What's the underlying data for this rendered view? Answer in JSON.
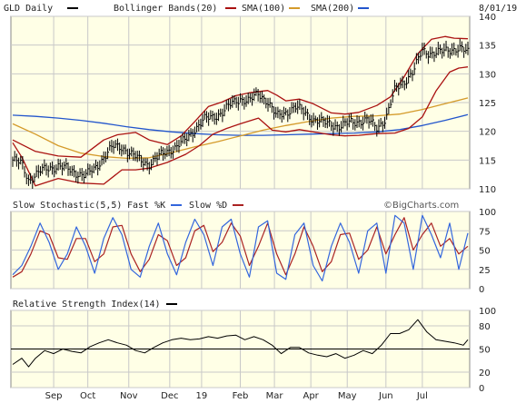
{
  "chart_data": {
    "type": "line",
    "header": {
      "symbol_label": "GLD Daily",
      "bb_label": "Bollinger Bands(20)",
      "sma100_label": "SMA(100)",
      "sma200_label": "SMA(200)",
      "date": "8/01/19"
    },
    "colors": {
      "panel_bg": "#ffffe6",
      "grid": "#c8c8c8",
      "price": "#000000",
      "bollinger": "#aa1111",
      "sma100": "#d49a2a",
      "sma200": "#2255cc",
      "fast_k": "#3366dd",
      "slow_d": "#aa2222",
      "rsi": "#000000"
    },
    "x_labels": [
      "Sep",
      "Oct",
      "Nov",
      "Dec",
      "19",
      "Feb",
      "Mar",
      "Apr",
      "May",
      "Jun",
      "Jul"
    ],
    "x_label_t": [
      0.09,
      0.165,
      0.255,
      0.345,
      0.415,
      0.5,
      0.575,
      0.655,
      0.735,
      0.82,
      0.9
    ],
    "price_panel": {
      "ylim": [
        110,
        140
      ],
      "yticks": [
        110,
        115,
        120,
        125,
        130,
        135,
        140
      ],
      "price_pts": [
        [
          0,
          115
        ],
        [
          0.02,
          114.3
        ],
        [
          0.035,
          111.5
        ],
        [
          0.06,
          113
        ],
        [
          0.08,
          113.6
        ],
        [
          0.1,
          114
        ],
        [
          0.12,
          113.4
        ],
        [
          0.14,
          112.8
        ],
        [
          0.16,
          112.3
        ],
        [
          0.18,
          113.5
        ],
        [
          0.2,
          115.5
        ],
        [
          0.22,
          117.3
        ],
        [
          0.24,
          117.3
        ],
        [
          0.26,
          116
        ],
        [
          0.28,
          115
        ],
        [
          0.3,
          114.3
        ],
        [
          0.32,
          115.5
        ],
        [
          0.34,
          116.6
        ],
        [
          0.36,
          117.3
        ],
        [
          0.38,
          118.5
        ],
        [
          0.4,
          120.4
        ],
        [
          0.42,
          122
        ],
        [
          0.44,
          122.5
        ],
        [
          0.46,
          123.3
        ],
        [
          0.48,
          124.7
        ],
        [
          0.5,
          125.7
        ],
        [
          0.52,
          125.3
        ],
        [
          0.54,
          126.5
        ],
        [
          0.56,
          125.3
        ],
        [
          0.58,
          122.5
        ],
        [
          0.6,
          123.3
        ],
        [
          0.62,
          124.3
        ],
        [
          0.64,
          123.3
        ],
        [
          0.66,
          122.2
        ],
        [
          0.68,
          121.5
        ],
        [
          0.7,
          121.3
        ],
        [
          0.72,
          120.8
        ],
        [
          0.74,
          121.5
        ],
        [
          0.76,
          121.8
        ],
        [
          0.78,
          121.9
        ],
        [
          0.8,
          120.6
        ],
        [
          0.82,
          122.3
        ],
        [
          0.84,
          127.2
        ],
        [
          0.86,
          128.7
        ],
        [
          0.88,
          130.3
        ],
        [
          0.9,
          134.1
        ],
        [
          0.92,
          133.6
        ],
        [
          0.94,
          133.7
        ],
        [
          0.96,
          134.3
        ],
        [
          0.98,
          134.4
        ],
        [
          1.0,
          133.7
        ]
      ],
      "bb_upper": [
        [
          0,
          118.5
        ],
        [
          0.05,
          116.5
        ],
        [
          0.1,
          115.7
        ],
        [
          0.15,
          115.5
        ],
        [
          0.2,
          118.5
        ],
        [
          0.23,
          119.4
        ],
        [
          0.27,
          119.8
        ],
        [
          0.3,
          118.5
        ],
        [
          0.34,
          117.7
        ],
        [
          0.37,
          119.2
        ],
        [
          0.4,
          121.7
        ],
        [
          0.43,
          124.3
        ],
        [
          0.46,
          125.1
        ],
        [
          0.49,
          126.2
        ],
        [
          0.52,
          126.7
        ],
        [
          0.56,
          127.1
        ],
        [
          0.58,
          126.3
        ],
        [
          0.6,
          125.3
        ],
        [
          0.63,
          125.6
        ],
        [
          0.66,
          124.8
        ],
        [
          0.7,
          123.2
        ],
        [
          0.73,
          123
        ],
        [
          0.76,
          123.3
        ],
        [
          0.8,
          124.5
        ],
        [
          0.83,
          126
        ],
        [
          0.86,
          129.5
        ],
        [
          0.89,
          133.5
        ],
        [
          0.92,
          136
        ],
        [
          0.95,
          136.5
        ],
        [
          0.97,
          136.2
        ],
        [
          1.0,
          136.1
        ]
      ],
      "bb_lower": [
        [
          0,
          118
        ],
        [
          0.02,
          115.5
        ],
        [
          0.05,
          110.5
        ],
        [
          0.1,
          111.8
        ],
        [
          0.15,
          111
        ],
        [
          0.2,
          110.8
        ],
        [
          0.24,
          113.3
        ],
        [
          0.27,
          113.3
        ],
        [
          0.3,
          113.6
        ],
        [
          0.34,
          114.6
        ],
        [
          0.38,
          116
        ],
        [
          0.41,
          117.5
        ],
        [
          0.44,
          119.5
        ],
        [
          0.47,
          120.5
        ],
        [
          0.5,
          121.3
        ],
        [
          0.54,
          122.3
        ],
        [
          0.57,
          120.2
        ],
        [
          0.6,
          119.9
        ],
        [
          0.63,
          120.3
        ],
        [
          0.66,
          119.9
        ],
        [
          0.7,
          119.4
        ],
        [
          0.73,
          119.2
        ],
        [
          0.76,
          119.3
        ],
        [
          0.8,
          119.6
        ],
        [
          0.84,
          119.7
        ],
        [
          0.87,
          120.5
        ],
        [
          0.9,
          122.5
        ],
        [
          0.93,
          127
        ],
        [
          0.96,
          130.3
        ],
        [
          0.98,
          131
        ],
        [
          1.0,
          131.2
        ]
      ],
      "sma100": [
        [
          0,
          121.3
        ],
        [
          0.05,
          119.5
        ],
        [
          0.1,
          117.5
        ],
        [
          0.15,
          116.2
        ],
        [
          0.2,
          115.6
        ],
        [
          0.25,
          115.3
        ],
        [
          0.3,
          115.4
        ],
        [
          0.35,
          116.3
        ],
        [
          0.4,
          117.3
        ],
        [
          0.45,
          118.2
        ],
        [
          0.5,
          119.2
        ],
        [
          0.55,
          120.2
        ],
        [
          0.6,
          121
        ],
        [
          0.65,
          121.7
        ],
        [
          0.7,
          122.3
        ],
        [
          0.75,
          122.6
        ],
        [
          0.8,
          122.7
        ],
        [
          0.85,
          123
        ],
        [
          0.9,
          123.8
        ],
        [
          0.95,
          124.8
        ],
        [
          1.0,
          125.8
        ]
      ],
      "sma200": [
        [
          0,
          122.8
        ],
        [
          0.05,
          122.6
        ],
        [
          0.1,
          122.3
        ],
        [
          0.15,
          121.9
        ],
        [
          0.2,
          121.4
        ],
        [
          0.25,
          120.8
        ],
        [
          0.3,
          120.3
        ],
        [
          0.35,
          119.9
        ],
        [
          0.4,
          119.6
        ],
        [
          0.45,
          119.4
        ],
        [
          0.5,
          119.3
        ],
        [
          0.55,
          119.3
        ],
        [
          0.6,
          119.4
        ],
        [
          0.65,
          119.5
        ],
        [
          0.7,
          119.6
        ],
        [
          0.75,
          119.7
        ],
        [
          0.8,
          119.9
        ],
        [
          0.85,
          120.3
        ],
        [
          0.9,
          121
        ],
        [
          0.95,
          121.9
        ],
        [
          1.0,
          122.9
        ]
      ]
    },
    "stoch_panel": {
      "header": {
        "title": "Slow Stochastic(5,5)",
        "fast_label": "Fast %K",
        "slow_label": "Slow %D",
        "watermark": "©BigCharts.com"
      },
      "ylim": [
        0,
        100
      ],
      "yticks": [
        0,
        25,
        50,
        75,
        100
      ],
      "fast_k": [
        [
          0,
          18
        ],
        [
          0.02,
          30
        ],
        [
          0.04,
          55
        ],
        [
          0.06,
          85
        ],
        [
          0.08,
          60
        ],
        [
          0.1,
          25
        ],
        [
          0.12,
          45
        ],
        [
          0.14,
          80
        ],
        [
          0.16,
          55
        ],
        [
          0.18,
          20
        ],
        [
          0.2,
          65
        ],
        [
          0.22,
          92
        ],
        [
          0.24,
          70
        ],
        [
          0.26,
          25
        ],
        [
          0.28,
          15
        ],
        [
          0.3,
          55
        ],
        [
          0.32,
          85
        ],
        [
          0.34,
          45
        ],
        [
          0.36,
          18
        ],
        [
          0.38,
          60
        ],
        [
          0.4,
          90
        ],
        [
          0.42,
          70
        ],
        [
          0.44,
          30
        ],
        [
          0.46,
          80
        ],
        [
          0.48,
          90
        ],
        [
          0.5,
          45
        ],
        [
          0.52,
          15
        ],
        [
          0.54,
          80
        ],
        [
          0.56,
          88
        ],
        [
          0.58,
          20
        ],
        [
          0.6,
          12
        ],
        [
          0.62,
          70
        ],
        [
          0.64,
          85
        ],
        [
          0.66,
          30
        ],
        [
          0.68,
          10
        ],
        [
          0.7,
          55
        ],
        [
          0.72,
          85
        ],
        [
          0.74,
          60
        ],
        [
          0.76,
          20
        ],
        [
          0.78,
          75
        ],
        [
          0.8,
          85
        ],
        [
          0.82,
          20
        ],
        [
          0.84,
          95
        ],
        [
          0.86,
          85
        ],
        [
          0.88,
          25
        ],
        [
          0.9,
          95
        ],
        [
          0.92,
          70
        ],
        [
          0.94,
          40
        ],
        [
          0.96,
          85
        ],
        [
          0.98,
          25
        ],
        [
          1.0,
          72
        ]
      ],
      "slow_d": [
        [
          0,
          15
        ],
        [
          0.02,
          22
        ],
        [
          0.04,
          45
        ],
        [
          0.06,
          75
        ],
        [
          0.08,
          70
        ],
        [
          0.1,
          40
        ],
        [
          0.12,
          38
        ],
        [
          0.14,
          65
        ],
        [
          0.16,
          65
        ],
        [
          0.18,
          35
        ],
        [
          0.2,
          45
        ],
        [
          0.22,
          80
        ],
        [
          0.24,
          82
        ],
        [
          0.26,
          45
        ],
        [
          0.28,
          22
        ],
        [
          0.3,
          38
        ],
        [
          0.32,
          70
        ],
        [
          0.34,
          62
        ],
        [
          0.36,
          30
        ],
        [
          0.38,
          40
        ],
        [
          0.4,
          75
        ],
        [
          0.42,
          82
        ],
        [
          0.44,
          48
        ],
        [
          0.46,
          60
        ],
        [
          0.48,
          85
        ],
        [
          0.5,
          68
        ],
        [
          0.52,
          30
        ],
        [
          0.54,
          55
        ],
        [
          0.56,
          85
        ],
        [
          0.58,
          45
        ],
        [
          0.6,
          18
        ],
        [
          0.62,
          45
        ],
        [
          0.64,
          80
        ],
        [
          0.66,
          55
        ],
        [
          0.68,
          22
        ],
        [
          0.7,
          35
        ],
        [
          0.72,
          70
        ],
        [
          0.74,
          72
        ],
        [
          0.76,
          38
        ],
        [
          0.78,
          50
        ],
        [
          0.8,
          80
        ],
        [
          0.82,
          45
        ],
        [
          0.84,
          70
        ],
        [
          0.86,
          92
        ],
        [
          0.88,
          50
        ],
        [
          0.9,
          70
        ],
        [
          0.92,
          85
        ],
        [
          0.94,
          55
        ],
        [
          0.96,
          65
        ],
        [
          0.98,
          45
        ],
        [
          1.0,
          55
        ]
      ]
    },
    "rsi_panel": {
      "title": "Relative Strength Index(14)",
      "ylim": [
        0,
        100
      ],
      "yticks": [
        0,
        20,
        50,
        80,
        100
      ],
      "reference_line": 50,
      "rsi": [
        [
          0,
          30
        ],
        [
          0.02,
          38
        ],
        [
          0.035,
          27
        ],
        [
          0.05,
          38
        ],
        [
          0.07,
          48
        ],
        [
          0.09,
          44
        ],
        [
          0.11,
          50
        ],
        [
          0.13,
          47
        ],
        [
          0.15,
          45
        ],
        [
          0.17,
          53
        ],
        [
          0.19,
          58
        ],
        [
          0.21,
          62
        ],
        [
          0.23,
          58
        ],
        [
          0.25,
          55
        ],
        [
          0.27,
          48
        ],
        [
          0.29,
          45
        ],
        [
          0.31,
          52
        ],
        [
          0.33,
          58
        ],
        [
          0.35,
          62
        ],
        [
          0.37,
          64
        ],
        [
          0.39,
          62
        ],
        [
          0.41,
          63
        ],
        [
          0.43,
          66
        ],
        [
          0.45,
          64
        ],
        [
          0.47,
          67
        ],
        [
          0.49,
          68
        ],
        [
          0.51,
          62
        ],
        [
          0.53,
          66
        ],
        [
          0.55,
          62
        ],
        [
          0.57,
          55
        ],
        [
          0.59,
          44
        ],
        [
          0.61,
          52
        ],
        [
          0.63,
          52
        ],
        [
          0.65,
          45
        ],
        [
          0.67,
          42
        ],
        [
          0.69,
          40
        ],
        [
          0.71,
          44
        ],
        [
          0.73,
          38
        ],
        [
          0.75,
          42
        ],
        [
          0.77,
          48
        ],
        [
          0.79,
          44
        ],
        [
          0.81,
          55
        ],
        [
          0.83,
          70
        ],
        [
          0.85,
          70
        ],
        [
          0.87,
          75
        ],
        [
          0.89,
          88
        ],
        [
          0.91,
          72
        ],
        [
          0.93,
          62
        ],
        [
          0.95,
          60
        ],
        [
          0.97,
          58
        ],
        [
          0.99,
          55
        ],
        [
          1.0,
          62
        ]
      ]
    }
  }
}
